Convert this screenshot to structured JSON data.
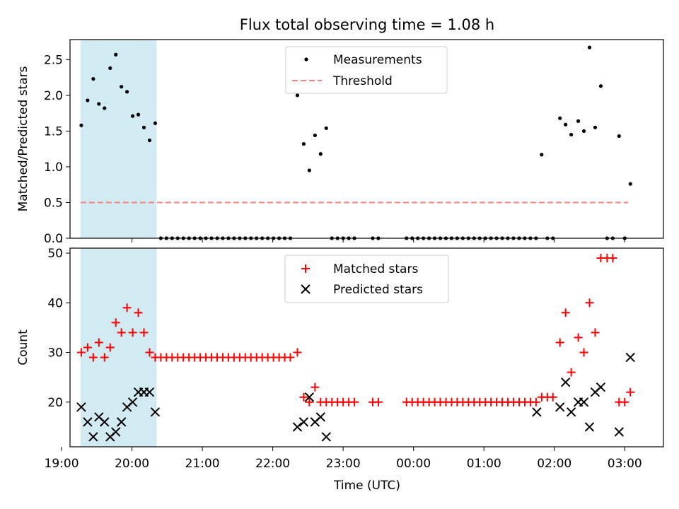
{
  "title": "Flux total observing time = 1.08 h",
  "colors": {
    "highlight": "#add8e6",
    "measure": "#000000",
    "threshold": "#ff7f7f",
    "matched": "#ff0000",
    "predicted": "#000000"
  },
  "chart_data": [
    {
      "type": "scatter",
      "xlabel": "",
      "ylabel": "Matched/Predicted stars",
      "xlim": [
        19.12,
        27.55
      ],
      "ylim": [
        0,
        2.78
      ],
      "yticks": [
        0.0,
        0.5,
        1.0,
        1.5,
        2.0,
        2.5
      ],
      "ytick_labels": [
        "0.0",
        "0.5",
        "1.0",
        "1.5",
        "2.0",
        "2.5"
      ],
      "highlight_span": [
        19.27,
        20.35
      ],
      "legend": {
        "placement": "top-center",
        "entries": [
          "Measurements",
          "Threshold"
        ]
      },
      "threshold": {
        "name": "Threshold",
        "y": 0.5,
        "x": [
          19.27,
          27.05
        ]
      },
      "series": [
        {
          "name": "Measurements",
          "x": [
            19.28,
            19.37,
            19.45,
            19.53,
            19.61,
            19.69,
            19.77,
            19.85,
            19.93,
            20.01,
            20.09,
            20.17,
            20.25,
            20.33,
            20.41,
            20.49,
            20.57,
            20.65,
            20.73,
            20.81,
            20.89,
            20.97,
            21.05,
            21.13,
            21.21,
            21.29,
            21.37,
            21.45,
            21.53,
            21.61,
            21.69,
            21.77,
            21.85,
            21.93,
            22.01,
            22.09,
            22.17,
            22.25,
            22.35,
            22.44,
            22.52,
            22.6,
            22.68,
            22.76,
            22.84,
            22.92,
            23.0,
            23.08,
            23.16,
            23.42,
            23.5,
            23.9,
            23.98,
            24.06,
            24.14,
            24.22,
            24.3,
            24.38,
            24.46,
            24.54,
            24.62,
            24.7,
            24.78,
            24.86,
            24.94,
            25.02,
            25.1,
            25.18,
            25.26,
            25.34,
            25.42,
            25.5,
            25.58,
            25.66,
            25.74,
            25.82,
            25.9,
            25.98,
            26.08,
            26.16,
            26.24,
            26.34,
            26.42,
            26.5,
            26.58,
            26.66,
            26.75,
            26.83,
            26.92,
            27.0,
            27.08
          ],
          "y": [
            1.58,
            1.93,
            2.23,
            1.88,
            1.82,
            2.38,
            2.57,
            2.12,
            2.05,
            1.71,
            1.73,
            1.55,
            1.37,
            1.61,
            0,
            0,
            0,
            0,
            0,
            0,
            0,
            0,
            0,
            0,
            0,
            0,
            0,
            0,
            0,
            0,
            0,
            0,
            0,
            0,
            0,
            0,
            0,
            0,
            2.0,
            1.32,
            0.95,
            1.44,
            1.18,
            1.54,
            0,
            0,
            0,
            0,
            0,
            0,
            0,
            0,
            0,
            0,
            0,
            0,
            0,
            0,
            0,
            0,
            0,
            0,
            0,
            0,
            0,
            0,
            0,
            0,
            0,
            0,
            0,
            0,
            0,
            0,
            0,
            1.17,
            0,
            0,
            1.68,
            1.59,
            1.45,
            1.64,
            1.5,
            2.67,
            1.55,
            2.13,
            0,
            0,
            1.43,
            0,
            0.76
          ]
        }
      ]
    },
    {
      "type": "scatter",
      "xlabel": "Time (UTC)",
      "ylabel": "Count",
      "xlim": [
        19.12,
        27.55
      ],
      "ylim": [
        11.0,
        51.0
      ],
      "xticks": [
        19,
        20,
        21,
        22,
        23,
        24,
        25,
        26,
        27
      ],
      "xtick_labels": [
        "19:00",
        "20:00",
        "21:00",
        "22:00",
        "23:00",
        "00:00",
        "01:00",
        "02:00",
        "03:00"
      ],
      "yticks": [
        20,
        30,
        40,
        50
      ],
      "ytick_labels": [
        "20",
        "30",
        "40",
        "50"
      ],
      "highlight_span": [
        19.27,
        20.35
      ],
      "legend": {
        "placement": "top-center",
        "entries": [
          "Matched stars",
          "Predicted stars"
        ]
      },
      "series": [
        {
          "name": "Matched stars",
          "x": [
            19.28,
            19.37,
            19.45,
            19.53,
            19.61,
            19.69,
            19.77,
            19.85,
            19.93,
            20.01,
            20.09,
            20.17,
            20.25,
            20.33,
            20.41,
            20.49,
            20.57,
            20.65,
            20.73,
            20.81,
            20.89,
            20.97,
            21.05,
            21.13,
            21.21,
            21.29,
            21.37,
            21.45,
            21.53,
            21.61,
            21.69,
            21.77,
            21.85,
            21.93,
            22.01,
            22.09,
            22.17,
            22.25,
            22.35,
            22.44,
            22.52,
            22.6,
            22.68,
            22.76,
            22.84,
            22.92,
            23.0,
            23.08,
            23.16,
            23.42,
            23.5,
            23.9,
            23.98,
            24.06,
            24.14,
            24.22,
            24.3,
            24.38,
            24.46,
            24.54,
            24.62,
            24.7,
            24.78,
            24.86,
            24.94,
            25.02,
            25.1,
            25.18,
            25.26,
            25.34,
            25.42,
            25.5,
            25.58,
            25.66,
            25.74,
            25.82,
            25.9,
            25.98,
            26.08,
            26.16,
            26.24,
            26.34,
            26.42,
            26.5,
            26.58,
            26.66,
            26.75,
            26.83,
            26.92,
            27.0,
            27.08
          ],
          "y": [
            30,
            31,
            29,
            32,
            29,
            31,
            36,
            34,
            39,
            34,
            38,
            34,
            30,
            29,
            29,
            29,
            29,
            29,
            29,
            29,
            29,
            29,
            29,
            29,
            29,
            29,
            29,
            29,
            29,
            29,
            29,
            29,
            29,
            29,
            29,
            29,
            29,
            29,
            30,
            21,
            20,
            23,
            20,
            20,
            20,
            20,
            20,
            20,
            20,
            20,
            20,
            20,
            20,
            20,
            20,
            20,
            20,
            20,
            20,
            20,
            20,
            20,
            20,
            20,
            20,
            20,
            20,
            20,
            20,
            20,
            20,
            20,
            20,
            20,
            20,
            21,
            21,
            21,
            32,
            38,
            26,
            33,
            30,
            40,
            34,
            49,
            49,
            49,
            20,
            20,
            22
          ]
        },
        {
          "name": "Predicted stars",
          "x": [
            19.28,
            19.37,
            19.45,
            19.53,
            19.61,
            19.69,
            19.77,
            19.85,
            19.93,
            20.01,
            20.09,
            20.17,
            20.25,
            20.33,
            22.35,
            22.44,
            22.52,
            22.6,
            22.68,
            22.76,
            25.75,
            26.08,
            26.16,
            26.24,
            26.34,
            26.42,
            26.5,
            26.58,
            26.66,
            26.92,
            27.08
          ],
          "y": [
            19,
            16,
            13,
            17,
            16,
            13,
            14,
            16,
            19,
            20,
            22,
            22,
            22,
            18,
            15,
            16,
            21,
            16,
            17,
            13,
            18,
            19,
            24,
            18,
            20,
            20,
            15,
            22,
            23,
            14,
            29
          ]
        }
      ]
    }
  ]
}
